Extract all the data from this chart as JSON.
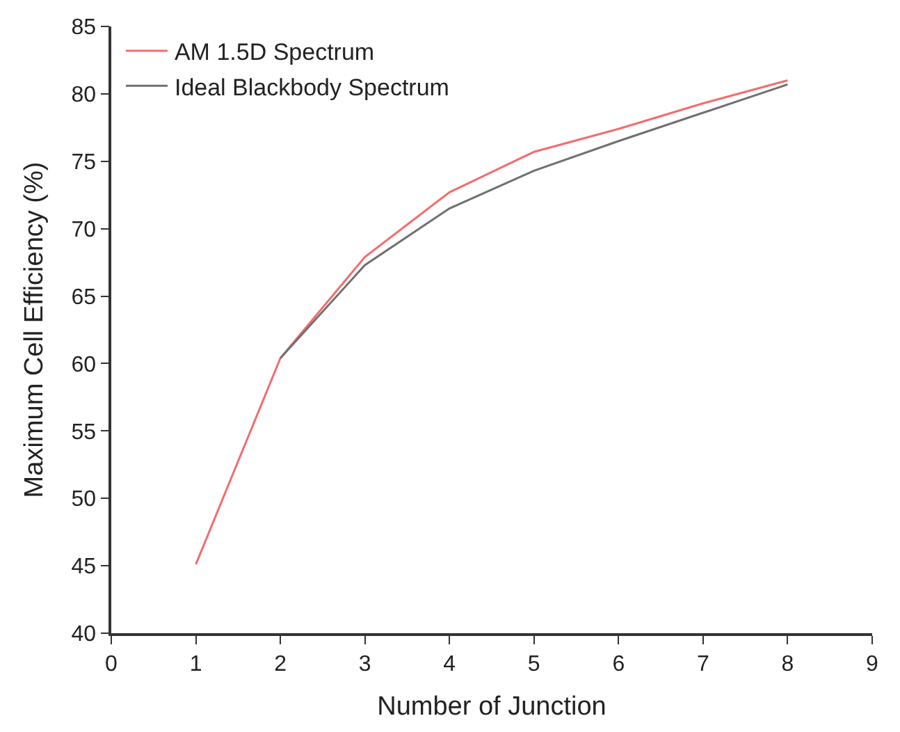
{
  "chart_data": {
    "type": "line",
    "xlabel": "Number of Junction",
    "ylabel": "Maximum Cell Efficiency (%)",
    "x": [
      1,
      2,
      3,
      4,
      5,
      6,
      7,
      8
    ],
    "series": [
      {
        "name": "AM 1.5D Spectrum",
        "color": "#f26d6d",
        "values": [
          45.1,
          60.4,
          67.9,
          72.7,
          75.7,
          77.4,
          79.3,
          81.0
        ]
      },
      {
        "name": "Ideal Blackbody Spectrum",
        "color": "#707070",
        "values": [
          null,
          60.4,
          67.3,
          71.5,
          74.3,
          76.5,
          78.6,
          80.7
        ]
      }
    ],
    "xlim": [
      0,
      9
    ],
    "xticks": [
      0,
      1,
      2,
      3,
      4,
      5,
      6,
      7,
      8,
      9
    ],
    "ylim": [
      40,
      85
    ],
    "yticks": [
      40,
      45,
      50,
      55,
      60,
      65,
      70,
      75,
      80,
      85
    ],
    "legend": "top left",
    "marker": "none",
    "line_style": "solid"
  }
}
